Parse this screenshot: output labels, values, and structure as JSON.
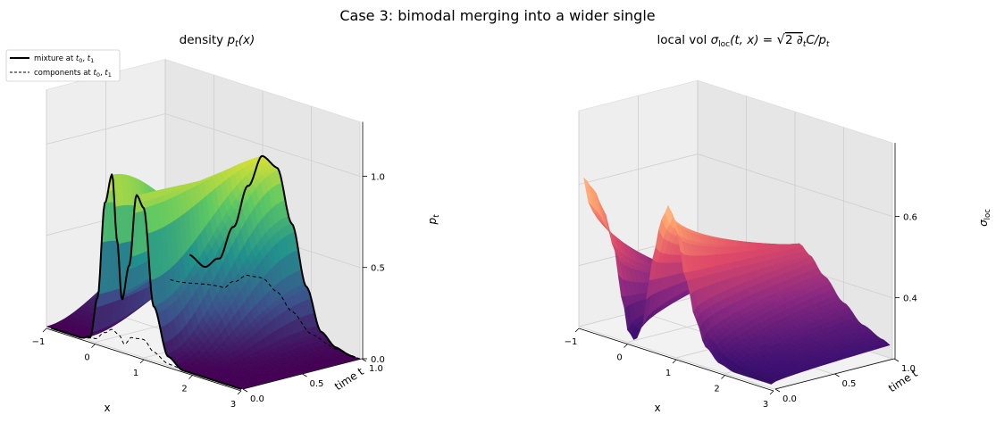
{
  "suptitle": "Case 3:  bimodal merging into a wider single",
  "chart_data": [
    {
      "type": "surface",
      "title_text": "density  ",
      "title_math": "p",
      "title_math_sub": "t",
      "title_math_tail": "(x)",
      "xlabel": "x",
      "ylabel": "time t",
      "zlabel_main": "p",
      "zlabel_sub": "t",
      "colormap": "viridis",
      "xlim": [
        -1,
        3
      ],
      "ylim": [
        0,
        1
      ],
      "zlim": [
        0,
        1.1
      ],
      "xticks": [
        "−1",
        "0",
        "1",
        "2",
        "3"
      ],
      "yticks": [
        "0.0",
        "0.5",
        "1.0"
      ],
      "zticks": [
        "0.0",
        "0.5",
        "1.0"
      ],
      "t0": {
        "t": 0.0,
        "mixture": {
          "x": [
            -0.9,
            -0.6,
            -0.3,
            -0.1,
            0.05,
            0.2,
            0.35,
            0.45,
            0.55,
            0.7,
            0.85,
            1.0,
            1.2,
            1.5,
            1.8,
            2.2,
            2.6,
            3.0
          ],
          "y": [
            0.0,
            0.0,
            0.0,
            0.02,
            0.25,
            0.78,
            0.95,
            0.6,
            0.28,
            0.48,
            0.88,
            0.82,
            0.3,
            0.05,
            0.0,
            0.0,
            0.0,
            0.0
          ]
        },
        "components": {
          "x": [
            -0.9,
            -0.3,
            0.0,
            0.2,
            0.35,
            0.5,
            0.6,
            0.75,
            1.0,
            1.2,
            1.5,
            2.0,
            2.5
          ],
          "y": [
            0.0,
            0.0,
            0.02,
            0.07,
            0.1,
            0.08,
            0.04,
            0.09,
            0.1,
            0.05,
            0.01,
            0.0,
            0.0
          ]
        }
      },
      "t1": {
        "t": 1.0,
        "mixture": {
          "x": [
            -0.9,
            -0.5,
            -0.2,
            0.1,
            0.4,
            0.7,
            1.0,
            1.3,
            1.6,
            1.9,
            2.2,
            2.5,
            2.8,
            3.0
          ],
          "y": [
            0.3,
            0.27,
            0.23,
            0.3,
            0.5,
            0.75,
            0.94,
            0.9,
            0.62,
            0.3,
            0.08,
            0.02,
            0.0,
            0.0
          ]
        },
        "components": {
          "x": [
            -0.9,
            0.2,
            0.4,
            0.7,
            1.0,
            1.3,
            1.6,
            2.0,
            2.5,
            3.0
          ],
          "y": [
            0.1,
            0.15,
            0.2,
            0.26,
            0.27,
            0.22,
            0.14,
            0.05,
            0.01,
            0.0
          ]
        }
      },
      "legend": {
        "placement": "upper-left",
        "entries": [
          {
            "label": "mixture at ",
            "math": "t",
            "s0": "0",
            "s1": "1",
            "style": "solid"
          },
          {
            "label": "components at ",
            "math": "t",
            "s0": "0",
            "s1": "1",
            "style": "dashed"
          }
        ]
      }
    },
    {
      "type": "surface",
      "title_text": "local vol  ",
      "title_sigma": "σ",
      "title_sub": "loc",
      "title_args": "(t, x) = ",
      "title_rad": "2 ∂",
      "title_rad_sub": "t",
      "title_rad_tail": "C/p",
      "title_rad_sub2": "t",
      "xlabel": "x",
      "ylabel": "time t",
      "zlabel_main": "σ",
      "zlabel_sub": "loc",
      "colormap": "magma",
      "xlim": [
        -1,
        3
      ],
      "ylim": [
        0,
        1
      ],
      "zlim": [
        0.25,
        0.7
      ],
      "xticks": [
        "−1",
        "0",
        "1",
        "2",
        "3"
      ],
      "yticks": [
        "0.0",
        "0.5",
        "1.0"
      ],
      "zticks": [
        "0.4",
        "0.6"
      ],
      "t0_profile": {
        "x": [
          -0.9,
          -0.7,
          -0.5,
          -0.3,
          -0.1,
          0.0,
          0.15,
          0.3,
          0.45,
          0.55,
          0.7,
          0.85,
          1.0,
          1.2,
          1.4,
          1.6,
          1.9,
          2.2,
          2.6,
          3.0
        ],
        "y": [
          0.62,
          0.6,
          0.56,
          0.48,
          0.35,
          0.28,
          0.26,
          0.3,
          0.42,
          0.5,
          0.58,
          0.62,
          0.56,
          0.45,
          0.36,
          0.3,
          0.27,
          0.26,
          0.26,
          0.26
        ]
      },
      "t1_profile": {
        "x": [
          -0.9,
          -0.6,
          -0.3,
          0.0,
          0.3,
          0.6,
          0.9,
          1.1,
          1.3,
          1.6,
          2.0,
          2.4,
          2.8,
          3.0
        ],
        "y": [
          0.3,
          0.29,
          0.32,
          0.36,
          0.4,
          0.43,
          0.45,
          0.46,
          0.44,
          0.4,
          0.35,
          0.31,
          0.29,
          0.28
        ]
      }
    }
  ]
}
